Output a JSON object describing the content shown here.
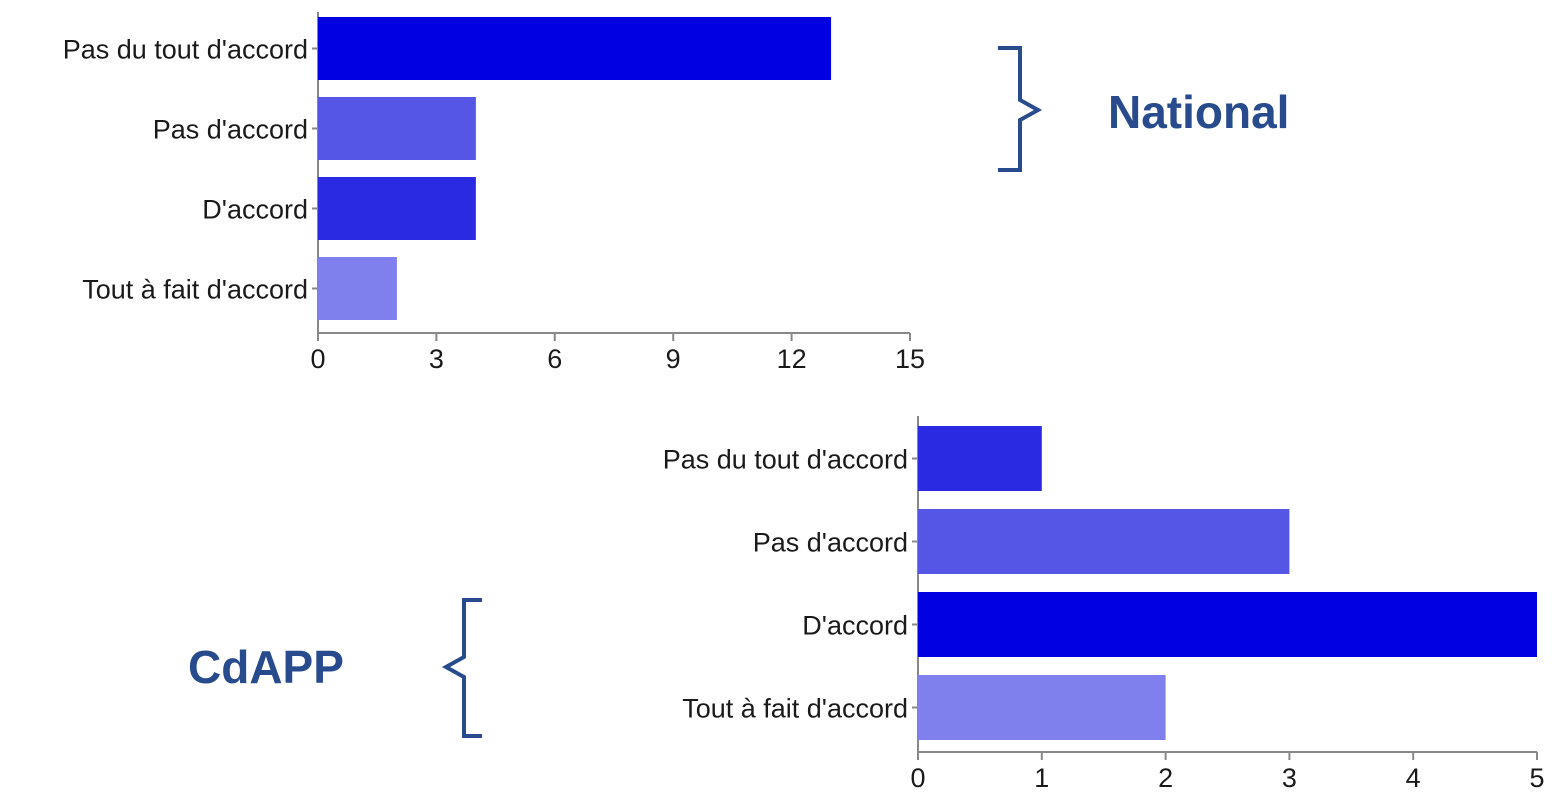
{
  "chart_data": [
    {
      "type": "bar",
      "orientation": "horizontal",
      "group_label": "National",
      "categories": [
        "Pas du tout d'accord",
        "Pas d'accord",
        "D'accord",
        "Tout à fait d'accord"
      ],
      "values": [
        13,
        4,
        4,
        2
      ],
      "bar_colors": [
        "#0000e0",
        "#5555e6",
        "#2a2ae2",
        "#7f7fee"
      ],
      "xlim": [
        0,
        15
      ],
      "xticks": [
        "0",
        "3",
        "6",
        "9",
        "12",
        "15"
      ],
      "grid": false
    },
    {
      "type": "bar",
      "orientation": "horizontal",
      "group_label": "CdAPP",
      "categories": [
        "Pas du tout d'accord",
        "Pas d'accord",
        "D'accord",
        "Tout à fait d'accord"
      ],
      "values": [
        1,
        3,
        5,
        2
      ],
      "bar_colors": [
        "#2a2ae2",
        "#5555e6",
        "#0000e0",
        "#7f7fee"
      ],
      "xlim": [
        0,
        5
      ],
      "xticks": [
        "0",
        "1",
        "2",
        "3",
        "4",
        "5"
      ],
      "grid": false
    }
  ],
  "colors": {
    "group_label": "#274b8c",
    "axis": "#888888"
  }
}
